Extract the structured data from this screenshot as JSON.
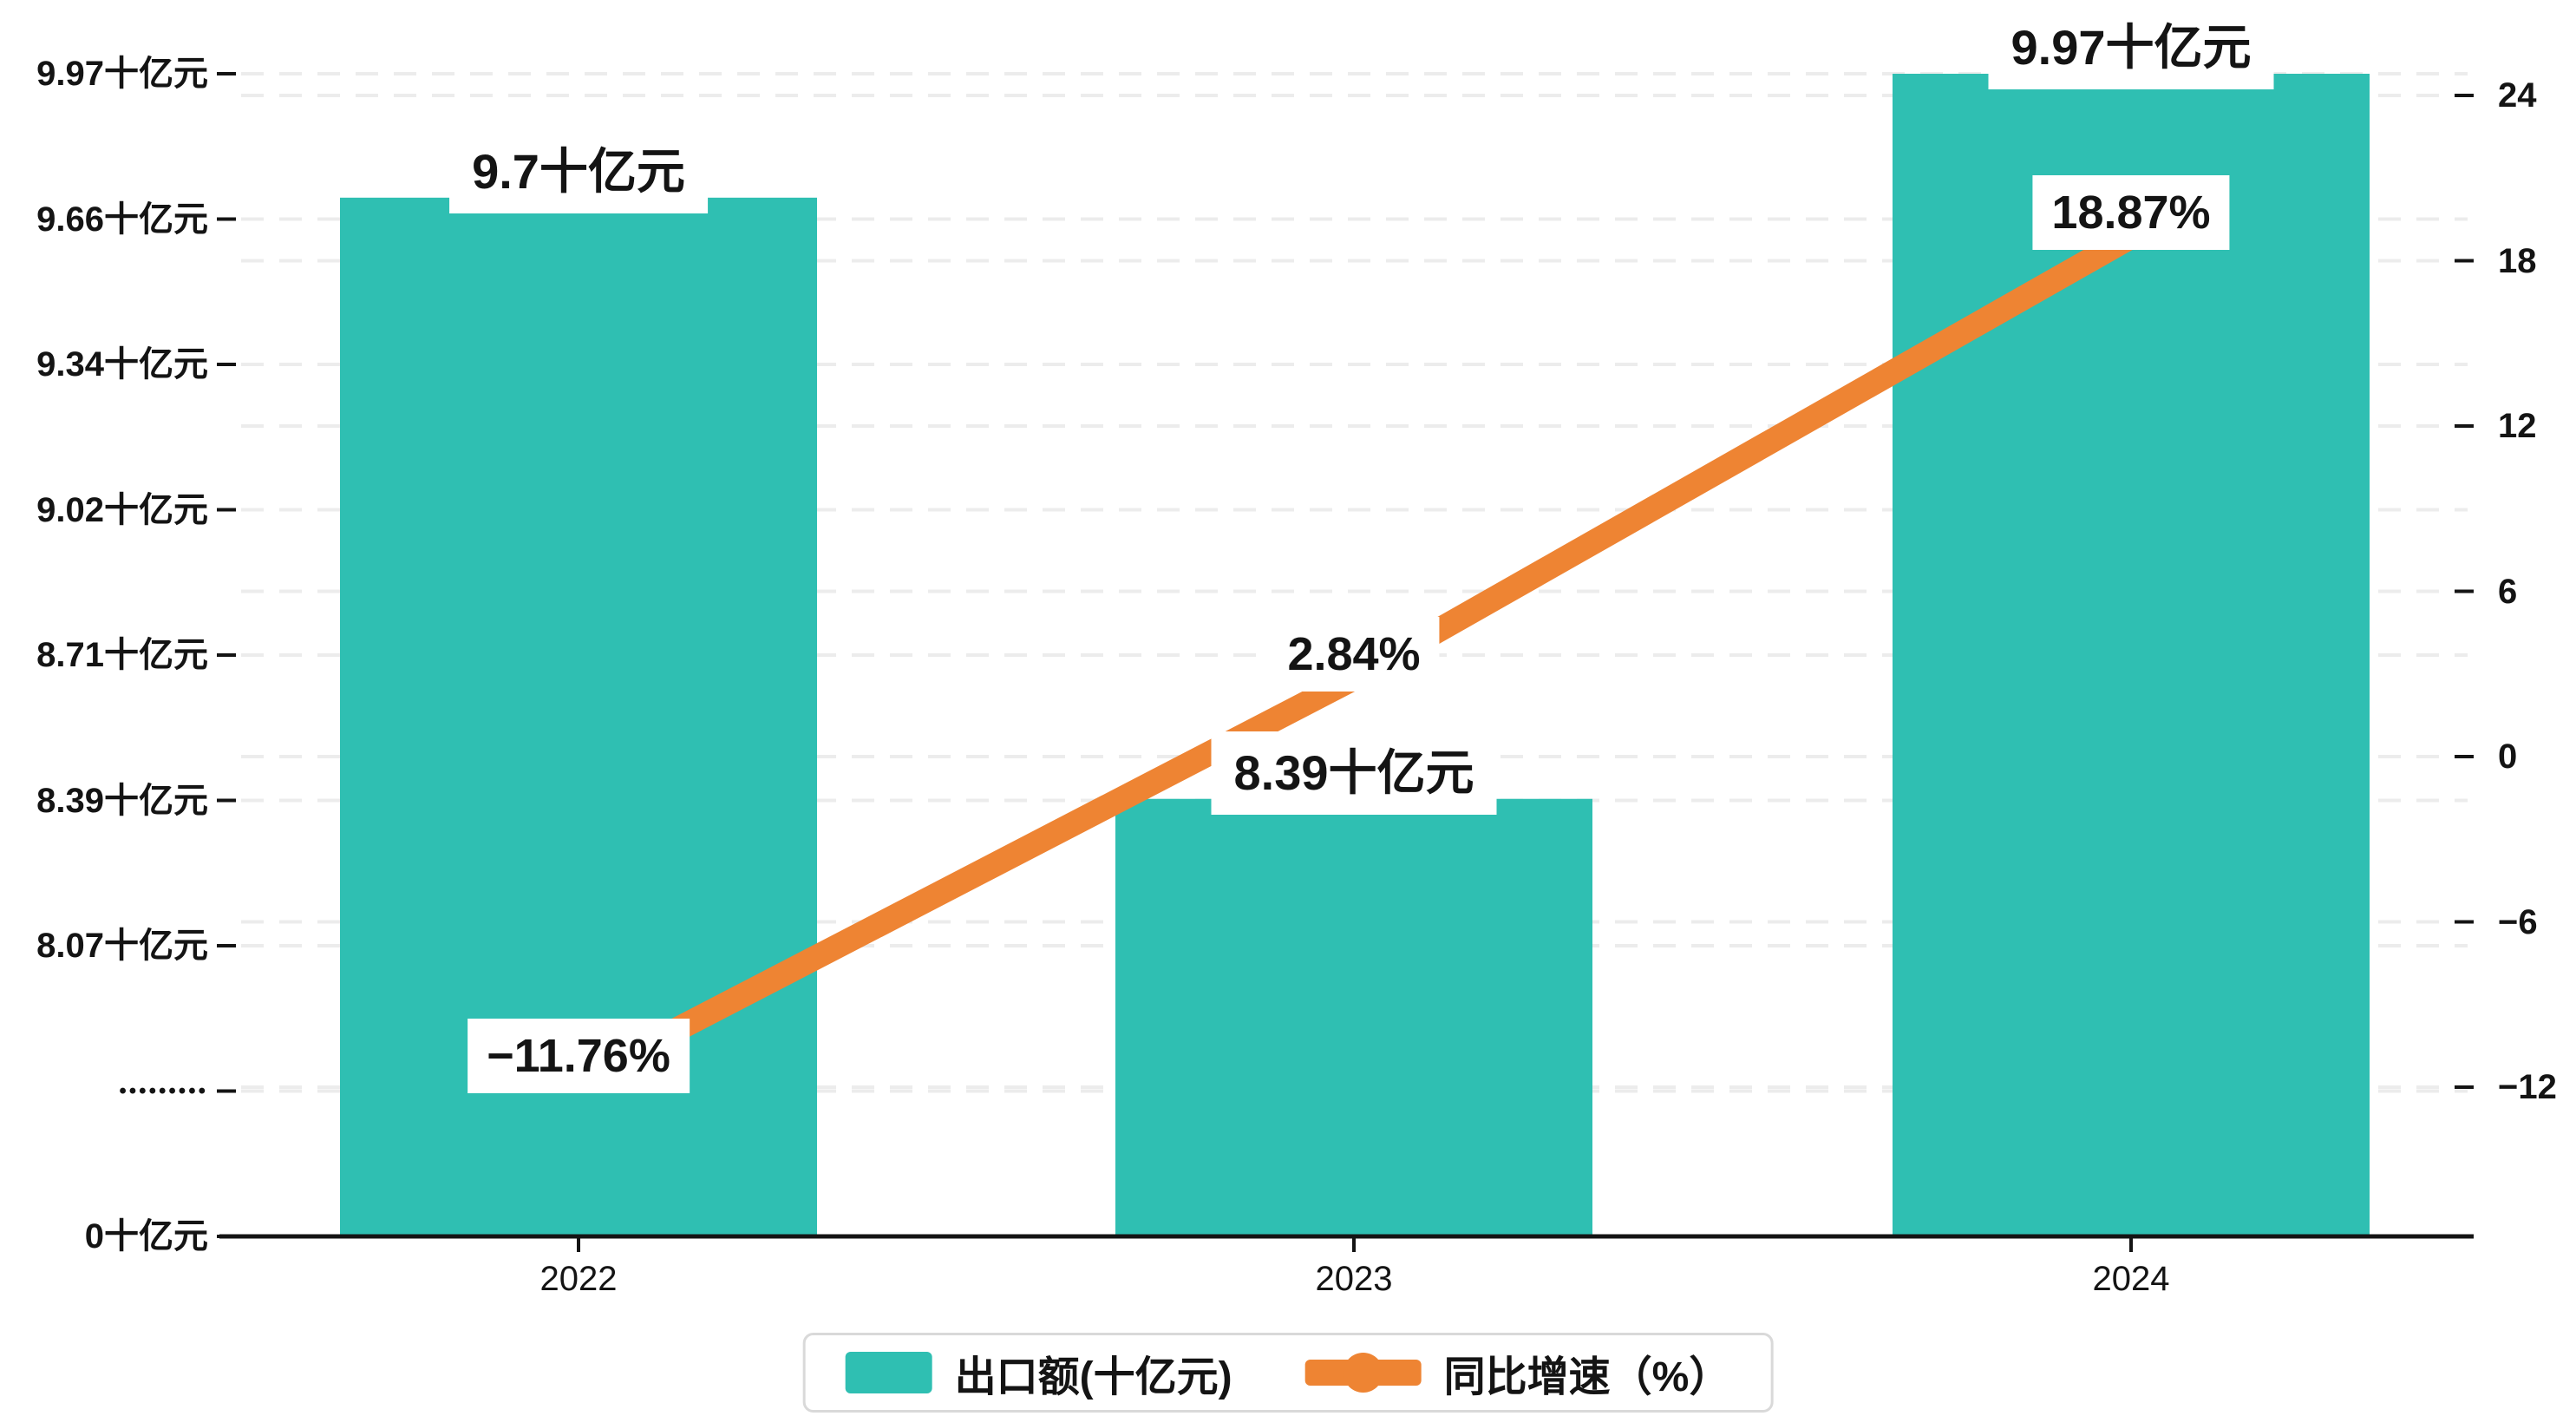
{
  "chart_data": {
    "type": "bar",
    "subtype": "combo-bar-line-dual-axis",
    "categories": [
      "2022",
      "2023",
      "2024"
    ],
    "series": [
      {
        "name": "出口额(十亿元)",
        "type": "bar",
        "color": "#2FBFB2",
        "values": [
          9.7,
          8.39,
          9.97
        ],
        "data_labels": [
          "9.7十亿元",
          "8.39十亿元",
          "9.97十亿元"
        ]
      },
      {
        "name": "同比增速（%）",
        "type": "line",
        "color": "#EE8433",
        "values": [
          -11.76,
          2.84,
          18.87
        ],
        "data_labels": [
          "−11.76%",
          "2.84%",
          "18.87%"
        ]
      }
    ],
    "left_axis": {
      "unit": "十亿元",
      "broken": true,
      "ticks": [
        {
          "label": "9.97十亿元",
          "value": 9.97
        },
        {
          "label": "9.66十亿元",
          "value": 9.66
        },
        {
          "label": "9.34十亿元",
          "value": 9.34
        },
        {
          "label": "9.02十亿元",
          "value": 9.02
        },
        {
          "label": "8.71十亿元",
          "value": 8.71
        },
        {
          "label": "8.39十亿元",
          "value": 8.39
        },
        {
          "label": "8.07十亿元",
          "value": 8.07
        },
        {
          "label": "•••••••••",
          "value": null,
          "break": true
        },
        {
          "label": "0十亿元",
          "value": 0
        }
      ]
    },
    "right_axis": {
      "unit": "%",
      "ticks": [
        {
          "label": "24",
          "value": 24
        },
        {
          "label": "18",
          "value": 18
        },
        {
          "label": "12",
          "value": 12
        },
        {
          "label": "6",
          "value": 6
        },
        {
          "label": "0",
          "value": 0
        },
        {
          "label": "−6",
          "value": -6
        },
        {
          "label": "−12",
          "value": -12
        }
      ]
    },
    "legend": {
      "items": [
        {
          "label": "出口额(十亿元)",
          "marker": "bar-swatch",
          "color": "#2FBFB2"
        },
        {
          "label": "同比增速（%）",
          "marker": "line-dot",
          "color": "#EE8433"
        }
      ]
    },
    "grid": {
      "dashed": true,
      "color": "#ececec"
    },
    "axis_line_color": "#141414"
  }
}
